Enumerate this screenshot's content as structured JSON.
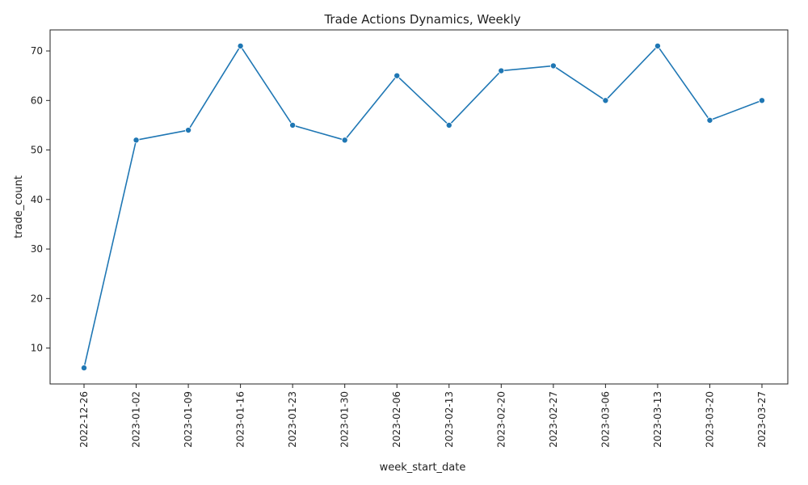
{
  "chart_data": {
    "type": "line",
    "title": "Trade Actions Dynamics, Weekly",
    "xlabel": "week_start_date",
    "ylabel": "trade_count",
    "categories": [
      "2022-12-26",
      "2023-01-02",
      "2023-01-09",
      "2023-01-16",
      "2023-01-23",
      "2023-01-30",
      "2023-02-06",
      "2023-02-13",
      "2023-02-20",
      "2023-02-27",
      "2023-03-06",
      "2023-03-13",
      "2023-03-20",
      "2023-03-27"
    ],
    "series": [
      {
        "values": [
          6,
          52,
          54,
          71,
          55,
          52,
          65,
          55,
          66,
          67,
          60,
          71,
          56,
          60
        ]
      }
    ],
    "yticks": [
      10,
      20,
      30,
      40,
      50,
      60,
      70
    ],
    "ylim": [
      2.75,
      74.25
    ],
    "grid": false,
    "markers": true,
    "line_color": "#1f77b4"
  }
}
